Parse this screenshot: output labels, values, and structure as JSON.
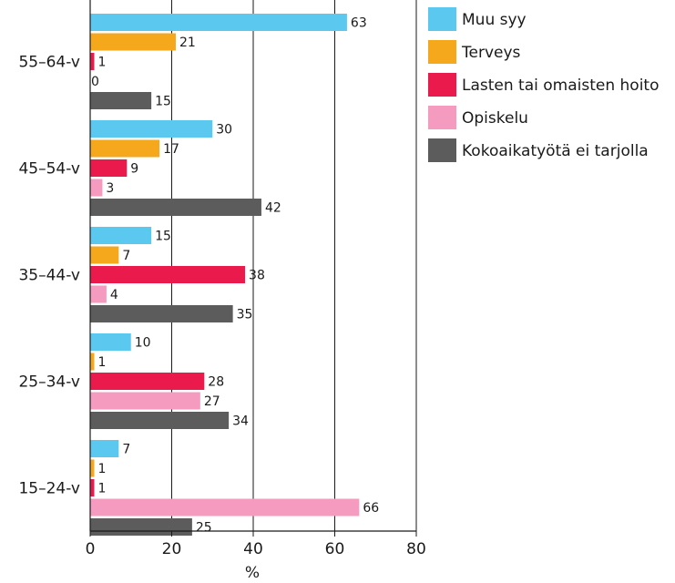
{
  "chart_data": {
    "type": "bar",
    "orientation": "horizontal",
    "title": "",
    "xlabel": "%",
    "ylabel": "",
    "xlim": [
      0,
      80
    ],
    "x_ticks": [
      "0",
      "20",
      "40",
      "60",
      "80"
    ],
    "grid": true,
    "legend_position": "right",
    "categories": [
      "55–64-v",
      "45–54-v",
      "35–44-v",
      "25–34-v",
      "15–24-v"
    ],
    "series": [
      {
        "name": "Muu syy",
        "color": "#5bc8f0",
        "values": [
          63,
          30,
          15,
          10,
          7
        ]
      },
      {
        "name": "Terveys",
        "color": "#f5a81c",
        "values": [
          21,
          17,
          7,
          1,
          1
        ]
      },
      {
        "name": "Lasten tai omaisten hoito",
        "color": "#ea1a4c",
        "values": [
          1,
          9,
          38,
          28,
          1
        ]
      },
      {
        "name": "Opiskelu",
        "color": "#f59bbf",
        "values": [
          0,
          3,
          4,
          27,
          66
        ]
      },
      {
        "name": "Kokoaikatyötä ei tarjolla",
        "color": "#5c5c5c",
        "values": [
          15,
          42,
          35,
          34,
          25
        ]
      }
    ]
  }
}
